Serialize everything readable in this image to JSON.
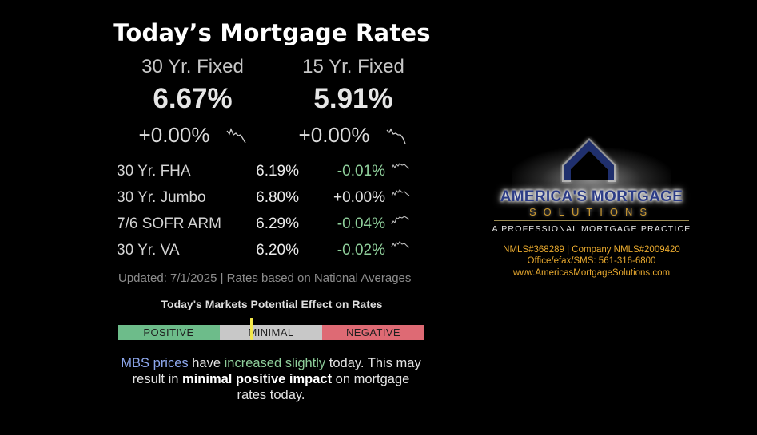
{
  "title": "Today’s Mortgage Rates",
  "featured": [
    {
      "name": "30 Yr. Fixed",
      "rate": "6.67%",
      "change": "+0.00%"
    },
    {
      "name": "15 Yr. Fixed",
      "rate": "5.91%",
      "change": "+0.00%"
    }
  ],
  "rows": [
    {
      "name": "30 Yr. FHA",
      "rate": "6.19%",
      "change": "-0.01%"
    },
    {
      "name": "30 Yr. Jumbo",
      "rate": "6.80%",
      "change": "+0.00%"
    },
    {
      "name": "7/6 SOFR ARM",
      "rate": "6.29%",
      "change": "-0.04%"
    },
    {
      "name": "30 Yr. VA",
      "rate": "6.20%",
      "change": "-0.02%"
    }
  ],
  "updated": "Updated: 7/1/2025 | Rates based on National Averages",
  "effect": {
    "title": "Today's Markets Potential Effect on Rates",
    "positive": "POSITIVE",
    "minimal": "MINIMAL",
    "negative": "NEGATIVE"
  },
  "message": {
    "p1": "MBS prices",
    "p2": " have ",
    "p3": "increased slightly",
    "p4": " today. This may result in ",
    "p5": "minimal positive impact",
    "p6": " on mortgage rates today."
  },
  "brand": {
    "name": "AMERICA'S MORTGAGE",
    "sub": "SOLUTIONS",
    "tagline": "A PROFESSIONAL MORTGAGE PRACTICE",
    "nmls": "NMLS#368289 | Company NMLS#2009420",
    "phone": "Office/efax/SMS: 561-316-6800",
    "website": "www.AmericasMortgageSolutions.com"
  },
  "colors": {
    "positive": "#6dbc8a",
    "minimal": "#c8c8c8",
    "negative": "#de6a74",
    "indicator": "#f4e84a",
    "mbs_blue": "#8ea8ee",
    "change_green": "#8fcf9b",
    "brand_navy": "#2c3c86",
    "brand_gold": "#c99830"
  },
  "icons": [
    "trend-sparkline-icon",
    "house-roof-logo-icon"
  ]
}
